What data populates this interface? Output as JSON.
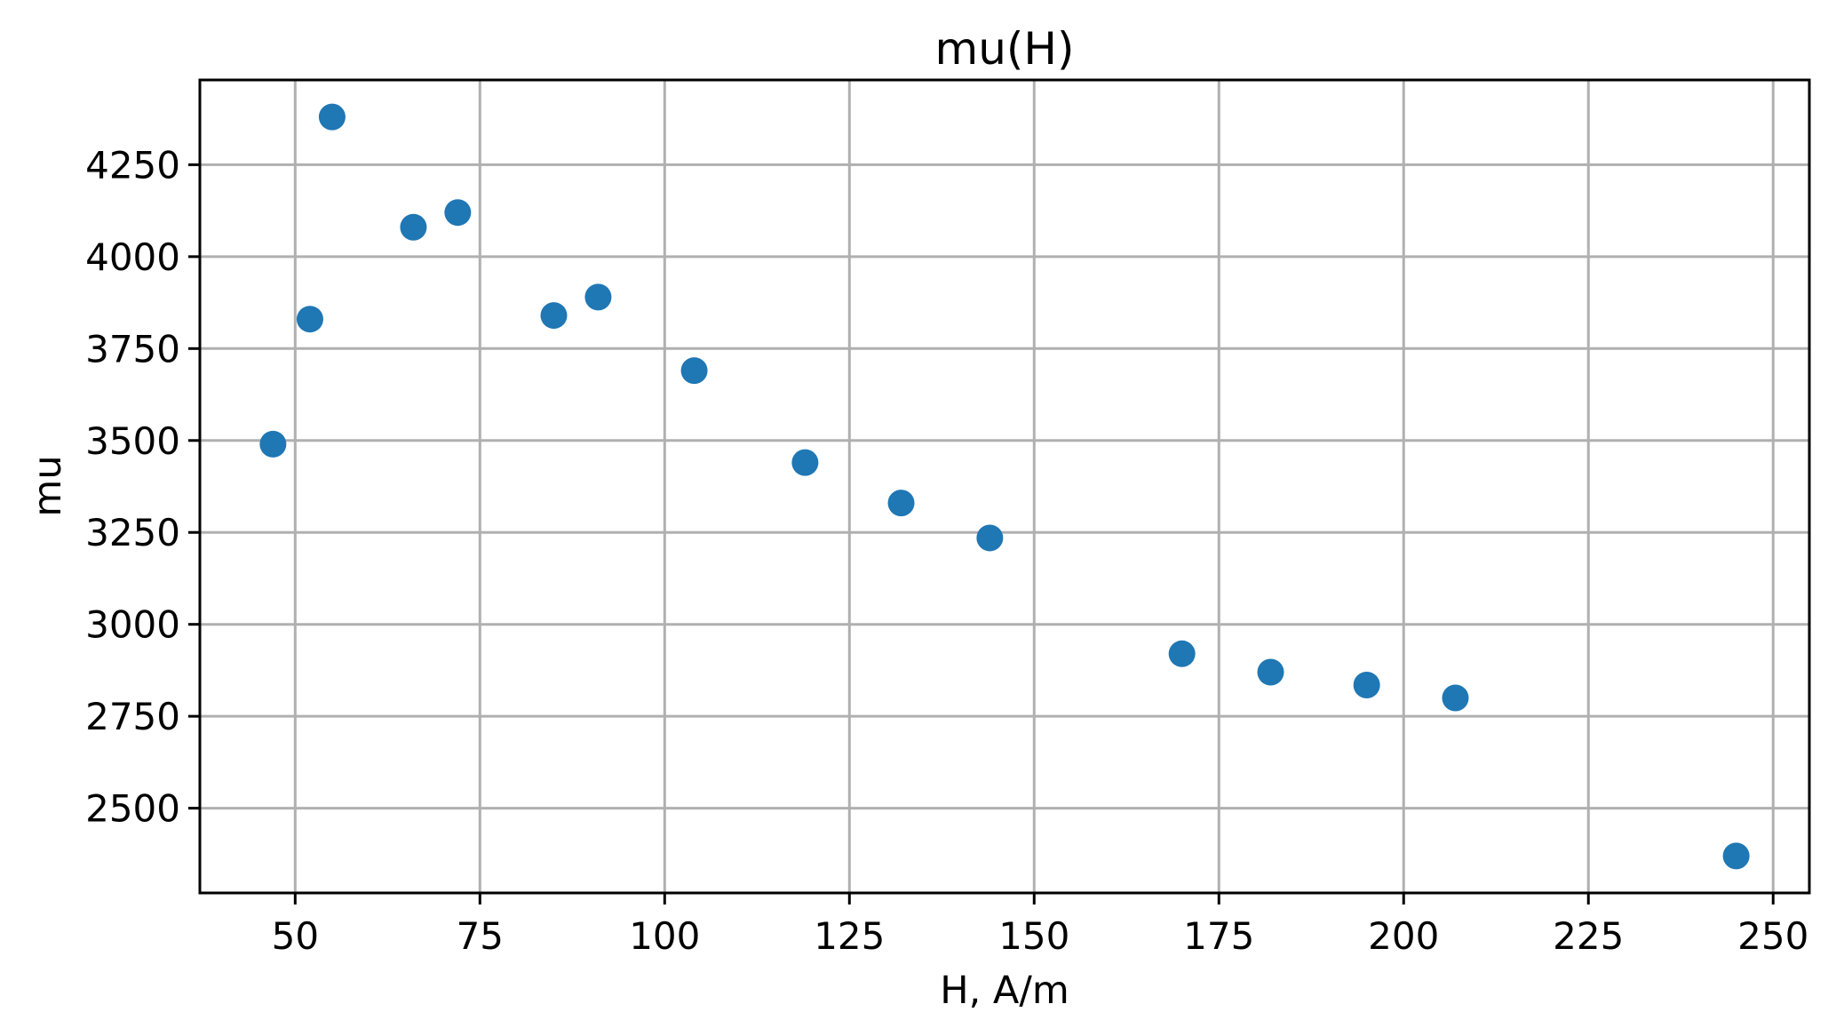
{
  "figure": {
    "background": "#ffffff"
  },
  "chart_data": {
    "type": "scatter",
    "title": "mu(H)",
    "xlabel": "H, A/m",
    "ylabel": "mu",
    "x": [
      47,
      52,
      55,
      66,
      72,
      85,
      91,
      104,
      119,
      132,
      144,
      170,
      182,
      195,
      207,
      245
    ],
    "y": [
      3490,
      3830,
      4380,
      4080,
      4120,
      3840,
      3890,
      3690,
      3440,
      3330,
      3235,
      2920,
      2870,
      2835,
      2800,
      2370
    ],
    "xticks": [
      50,
      75,
      100,
      125,
      150,
      175,
      200,
      225,
      250
    ],
    "yticks": [
      2500,
      2750,
      3000,
      3250,
      3500,
      3750,
      4000,
      4250
    ],
    "xlim": [
      37.1,
      254.9
    ],
    "ylim": [
      2269.5,
      4480.5
    ],
    "grid": true,
    "legend": "none",
    "marker_color": "#1f77b4",
    "grid_color": "#b0b0b0",
    "axis_color": "#000000",
    "text_color": "#000000"
  }
}
